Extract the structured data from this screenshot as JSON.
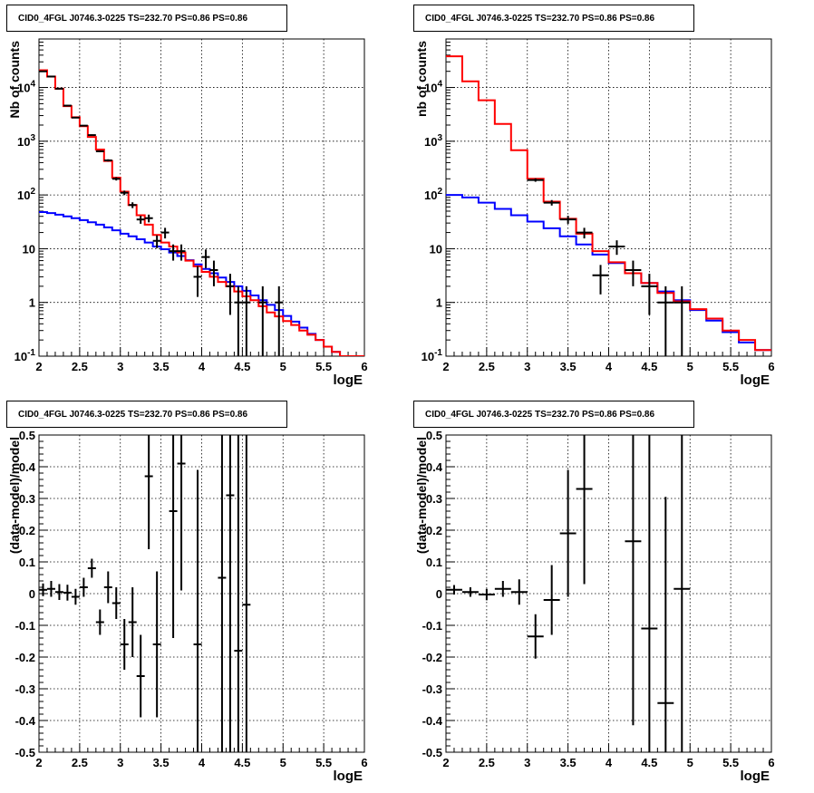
{
  "colors": {
    "data": "#000000",
    "model": "#ff0000",
    "background_model": "#0000ff",
    "grid": "#000000"
  },
  "chart_data": [
    {
      "panel": "top-left",
      "type": "histogram-log",
      "title": "CID0_4FGL J0746.3-0225 TS=232.70 PS=0.86 PS=0.86",
      "xlabel": "logE",
      "ylabel": "Nb of counts",
      "xlim": [
        2,
        6
      ],
      "ylim": [
        0.1,
        80000
      ],
      "log_y": true,
      "grid": true,
      "xticks": [
        2,
        2.5,
        3,
        3.5,
        4,
        4.5,
        5,
        5.5,
        6
      ],
      "xtick_labels": [
        "2",
        "2.5",
        "3",
        "3.5",
        "4",
        "4.5",
        "5",
        "5.5",
        "6"
      ],
      "yticks": [
        0.1,
        1,
        10,
        100,
        1000,
        10000
      ],
      "ytick_labels": [
        "10⁻¹",
        "1",
        "10",
        "10²",
        "10³",
        "10⁴"
      ],
      "bin_edges": [
        2,
        2.1,
        2.2,
        2.3,
        2.4,
        2.5,
        2.6,
        2.7,
        2.8,
        2.9,
        3,
        3.1,
        3.2,
        3.3,
        3.4,
        3.5,
        3.6,
        3.7,
        3.8,
        3.9,
        4,
        4.1,
        4.2,
        4.3,
        4.4,
        4.5,
        4.6,
        4.7,
        4.8,
        4.9,
        5,
        5.1,
        5.2,
        5.3,
        5.4,
        5.5,
        5.6,
        5.7,
        5.8,
        5.9,
        6
      ],
      "series": [
        {
          "role": "model",
          "values": [
            21000,
            16000,
            9500,
            4500,
            2800,
            1900,
            1200,
            700,
            430,
            210,
            115,
            65,
            42,
            28,
            18,
            13,
            11,
            8.5,
            6,
            4.7,
            3.7,
            3,
            2.4,
            2,
            1.6,
            1.3,
            1.1,
            0.85,
            0.65,
            0.55,
            0.45,
            0.38,
            0.3,
            0.25,
            0.2,
            0.15,
            0.12,
            0.1,
            0.1,
            0.1
          ]
        },
        {
          "role": "background_model",
          "values": [
            48,
            46,
            43,
            40,
            37,
            34,
            31,
            28,
            25,
            22,
            19,
            17,
            15,
            13,
            11,
            9.8,
            8.5,
            7.3,
            6.1,
            5.1,
            4.2,
            3.5,
            2.9,
            2.4,
            2,
            1.65,
            1.35,
            1.1,
            0.9,
            0.72,
            0.56,
            0.44,
            0.34,
            0.26,
            0.2,
            0.15,
            0.12,
            0.1,
            0.1,
            0.1
          ]
        }
      ],
      "points": [
        {
          "x": 2.05,
          "y": 20000
        },
        {
          "x": 2.15,
          "y": 16000
        },
        {
          "x": 2.25,
          "y": 9500
        },
        {
          "x": 2.35,
          "y": 4600
        },
        {
          "x": 2.45,
          "y": 2750
        },
        {
          "x": 2.55,
          "y": 1950
        },
        {
          "x": 2.65,
          "y": 1300
        },
        {
          "x": 2.75,
          "y": 650
        },
        {
          "x": 2.85,
          "y": 440
        },
        {
          "x": 2.95,
          "y": 200
        },
        {
          "x": 3.05,
          "y": 110
        },
        {
          "x": 3.15,
          "y": 65
        },
        {
          "x": 3.25,
          "y": 35
        },
        {
          "x": 3.35,
          "y": 37
        },
        {
          "x": 3.45,
          "y": 14
        },
        {
          "x": 3.55,
          "y": 20
        },
        {
          "x": 3.65,
          "y": 9
        },
        {
          "x": 3.75,
          "y": 9
        },
        {
          "x": 3.95,
          "y": 3
        },
        {
          "x": 4.05,
          "y": 7
        },
        {
          "x": 4.15,
          "y": 4
        },
        {
          "x": 4.35,
          "y": 2
        },
        {
          "x": 4.45,
          "y": 1
        },
        {
          "x": 4.55,
          "y": 1
        },
        {
          "x": 4.75,
          "y": 1
        },
        {
          "x": 4.95,
          "y": 1
        }
      ]
    },
    {
      "panel": "top-right",
      "type": "histogram-log",
      "title": "CID0_4FGL J0746.3-0225 TS=232.70 PS=0.86 PS=0.86",
      "xlabel": "logE",
      "ylabel": "nb of counts",
      "xlim": [
        2,
        6
      ],
      "ylim": [
        0.1,
        80000
      ],
      "log_y": true,
      "grid": true,
      "xticks": [
        2,
        2.5,
        3,
        3.5,
        4,
        4.5,
        5,
        5.5,
        6
      ],
      "xtick_labels": [
        "2",
        "2.5",
        "3",
        "3.5",
        "4",
        "4.5",
        "5",
        "5.5",
        "6"
      ],
      "yticks": [
        0.1,
        1,
        10,
        100,
        1000,
        10000
      ],
      "ytick_labels": [
        "10⁻¹",
        "1",
        "10",
        "10²",
        "10³",
        "10⁴"
      ],
      "bin_edges": [
        2,
        2.2,
        2.4,
        2.6,
        2.8,
        3,
        3.2,
        3.4,
        3.6,
        3.8,
        4,
        4.2,
        4.4,
        4.6,
        4.8,
        5,
        5.2,
        5.4,
        5.6,
        5.8,
        6
      ],
      "series": [
        {
          "role": "model",
          "values": [
            38000,
            13000,
            5800,
            2100,
            680,
            200,
            75,
            36,
            19,
            9,
            5.6,
            3.5,
            2.3,
            1.5,
            1.05,
            0.75,
            0.5,
            0.3,
            0.2,
            0.13
          ]
        },
        {
          "role": "background_model",
          "values": [
            100,
            90,
            72,
            55,
            42,
            32,
            24,
            17,
            12,
            7.8,
            5.4,
            3.5,
            2.3,
            1.6,
            1.1,
            0.72,
            0.46,
            0.28,
            0.18,
            0.13
          ]
        }
      ],
      "points": [
        {
          "x": 3.1,
          "y": 190
        },
        {
          "x": 3.3,
          "y": 72
        },
        {
          "x": 3.5,
          "y": 35
        },
        {
          "x": 3.7,
          "y": 20
        },
        {
          "x": 3.9,
          "y": 3.2
        },
        {
          "x": 4.1,
          "y": 11
        },
        {
          "x": 4.3,
          "y": 4
        },
        {
          "x": 4.5,
          "y": 2
        },
        {
          "x": 4.7,
          "y": 1
        },
        {
          "x": 4.9,
          "y": 1
        }
      ]
    },
    {
      "panel": "bottom-left",
      "type": "residuals",
      "title": "CID0_4FGL J0746.3-0225 TS=232.70 PS=0.86 PS=0.86",
      "xlabel": "logE",
      "ylabel": "(data-model)/model",
      "xlim": [
        2,
        6
      ],
      "ylim": [
        -0.5,
        0.5
      ],
      "grid": true,
      "xticks": [
        2,
        2.5,
        3,
        3.5,
        4,
        4.5,
        5,
        5.5,
        6
      ],
      "xtick_labels": [
        "2",
        "2.5",
        "3",
        "3.5",
        "4",
        "4.5",
        "5",
        "5.5",
        "6"
      ],
      "yticks": [
        -0.5,
        -0.4,
        -0.3,
        -0.2,
        -0.1,
        0,
        0.1,
        0.2,
        0.3,
        0.4,
        0.5
      ],
      "ytick_labels": [
        "-0.5",
        "-0.4",
        "-0.3",
        "-0.2",
        "-0.1",
        "0",
        "0.1",
        "0.2",
        "0.3",
        "0.4",
        "0.5"
      ],
      "points": [
        {
          "x": 2.05,
          "y": 0.012,
          "err": 0.02
        },
        {
          "x": 2.15,
          "y": 0.015,
          "err": 0.025
        },
        {
          "x": 2.25,
          "y": 0.005,
          "err": 0.025
        },
        {
          "x": 2.35,
          "y": 0.003,
          "err": 0.025
        },
        {
          "x": 2.45,
          "y": -0.01,
          "err": 0.025
        },
        {
          "x": 2.55,
          "y": 0.02,
          "err": 0.03
        },
        {
          "x": 2.65,
          "y": 0.08,
          "err": 0.03
        },
        {
          "x": 2.75,
          "y": -0.09,
          "err": 0.04
        },
        {
          "x": 2.85,
          "y": 0.02,
          "err": 0.05
        },
        {
          "x": 2.95,
          "y": -0.03,
          "err": 0.05
        },
        {
          "x": 3.05,
          "y": -0.16,
          "err": 0.08
        },
        {
          "x": 3.15,
          "y": -0.09,
          "err": 0.11
        },
        {
          "x": 3.25,
          "y": -0.26,
          "err": 0.13
        },
        {
          "x": 3.35,
          "y": 0.37,
          "err": 0.23
        },
        {
          "x": 3.45,
          "y": -0.16,
          "err": 0.23
        },
        {
          "x": 3.65,
          "y": 0.26,
          "err": 0.4
        },
        {
          "x": 3.75,
          "y": 0.41,
          "err": 0.4
        },
        {
          "x": 3.95,
          "y": -0.16,
          "err": 0.55
        },
        {
          "x": 4.25,
          "y": 0.05,
          "err": 1.0
        },
        {
          "x": 4.35,
          "y": 0.31,
          "err": 1.0
        },
        {
          "x": 4.45,
          "y": -0.18,
          "err": 1.0
        },
        {
          "x": 4.55,
          "y": -0.035,
          "err": 1.0
        }
      ]
    },
    {
      "panel": "bottom-right",
      "type": "residuals",
      "title": "CID0_4FGL J0746.3-0225 TS=232.70 PS=0.86 PS=0.86",
      "xlabel": "logE",
      "ylabel": "(data-model)/model",
      "xlim": [
        2,
        6
      ],
      "ylim": [
        -0.5,
        0.5
      ],
      "grid": true,
      "xticks": [
        2,
        2.5,
        3,
        3.5,
        4,
        4.5,
        5,
        5.5,
        6
      ],
      "xtick_labels": [
        "2",
        "2.5",
        "3",
        "3.5",
        "4",
        "4.5",
        "5",
        "5.5",
        "6"
      ],
      "yticks": [
        -0.5,
        -0.4,
        -0.3,
        -0.2,
        -0.1,
        0,
        0.1,
        0.2,
        0.3,
        0.4,
        0.5
      ],
      "ytick_labels": [
        "-0.5",
        "-0.4",
        "-0.3",
        "-0.2",
        "-0.1",
        "0",
        "0.1",
        "0.2",
        "0.3",
        "0.4",
        "0.5"
      ],
      "points": [
        {
          "x": 2.1,
          "y": 0.012,
          "err": 0.015
        },
        {
          "x": 2.3,
          "y": 0.005,
          "err": 0.015
        },
        {
          "x": 2.5,
          "y": -0.003,
          "err": 0.018
        },
        {
          "x": 2.7,
          "y": 0.015,
          "err": 0.025
        },
        {
          "x": 2.9,
          "y": 0.005,
          "err": 0.04
        },
        {
          "x": 3.1,
          "y": -0.135,
          "err": 0.07
        },
        {
          "x": 3.3,
          "y": -0.02,
          "err": 0.11
        },
        {
          "x": 3.5,
          "y": 0.19,
          "err": 0.2
        },
        {
          "x": 3.7,
          "y": 0.33,
          "err": 0.3
        },
        {
          "x": 4.3,
          "y": 0.165,
          "err": 0.58
        },
        {
          "x": 4.5,
          "y": -0.11,
          "err": 0.7
        },
        {
          "x": 4.7,
          "y": -0.345,
          "err": 0.65
        },
        {
          "x": 4.9,
          "y": 0.015,
          "err": 0.7
        }
      ]
    }
  ]
}
